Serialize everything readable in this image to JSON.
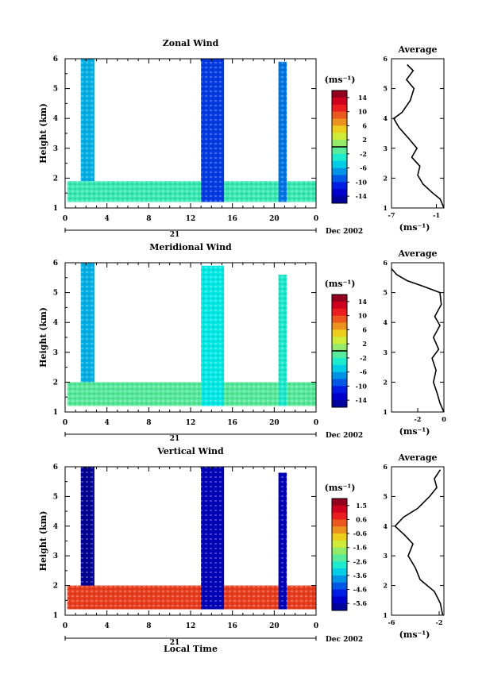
{
  "figure": {
    "xlabel_bottom": "Local Time",
    "date_day": "21",
    "date_label": "Dec 2002",
    "unit_label": "(ms⁻¹)",
    "average_title": "Average"
  },
  "chart_data": [
    {
      "type": "heatmap",
      "title": "Zonal Wind",
      "ylabel": "Height (km)",
      "xlabel": "Local Time",
      "x_ticks": [
        "0",
        "4",
        "8",
        "12",
        "16",
        "20",
        "0"
      ],
      "xlim_hours": [
        0,
        24
      ],
      "y_ticks": [
        "1",
        "2",
        "3",
        "4",
        "5",
        "6"
      ],
      "ylim_km": [
        1,
        6
      ],
      "colorbar": {
        "unit": "(ms⁻¹)",
        "ticks": [
          "14",
          "10",
          "6",
          "2",
          "-2",
          "-6",
          "-10",
          "-14"
        ],
        "range": [
          -16,
          16
        ],
        "zero_line": 0
      },
      "data_regions": [
        {
          "x_hours": [
            1.5,
            2.8
          ],
          "height_km": [
            1.2,
            6.0
          ],
          "value": -6
        },
        {
          "x_hours": [
            0.2,
            24.0
          ],
          "height_km": [
            1.2,
            1.9
          ],
          "value": -2
        },
        {
          "x_hours": [
            13.0,
            15.2
          ],
          "height_km": [
            1.2,
            6.0
          ],
          "value": -10
        },
        {
          "x_hours": [
            20.4,
            21.2
          ],
          "height_km": [
            1.2,
            5.9
          ],
          "value": -8
        }
      ],
      "average": {
        "title": "Average",
        "xlabel": "(ms⁻¹)",
        "x_ticks": [
          "-7",
          "-1"
        ],
        "xlim": [
          -7,
          0
        ],
        "profile": [
          {
            "height": 1.0,
            "value": 0.0
          },
          {
            "height": 1.3,
            "value": -0.5
          },
          {
            "height": 1.5,
            "value": -1.5
          },
          {
            "height": 1.8,
            "value": -2.8
          },
          {
            "height": 2.1,
            "value": -3.5
          },
          {
            "height": 2.4,
            "value": -3.2
          },
          {
            "height": 2.7,
            "value": -4.3
          },
          {
            "height": 3.0,
            "value": -3.6
          },
          {
            "height": 3.3,
            "value": -4.6
          },
          {
            "height": 3.7,
            "value": -6.0
          },
          {
            "height": 4.0,
            "value": -6.7
          },
          {
            "height": 4.2,
            "value": -5.6
          },
          {
            "height": 4.6,
            "value": -4.5
          },
          {
            "height": 5.0,
            "value": -4.0
          },
          {
            "height": 5.3,
            "value": -5.0
          },
          {
            "height": 5.6,
            "value": -4.1
          },
          {
            "height": 5.8,
            "value": -4.9
          }
        ]
      }
    },
    {
      "type": "heatmap",
      "title": "Meridional Wind",
      "ylabel": "Height (km)",
      "xlabel": "Local Time",
      "x_ticks": [
        "0",
        "4",
        "8",
        "12",
        "16",
        "20",
        "0"
      ],
      "xlim_hours": [
        0,
        24
      ],
      "y_ticks": [
        "1",
        "2",
        "3",
        "4",
        "5",
        "6"
      ],
      "ylim_km": [
        1,
        6
      ],
      "colorbar": {
        "unit": "(ms⁻¹)",
        "ticks": [
          "14",
          "10",
          "6",
          "2",
          "-2",
          "-6",
          "-10",
          "-14"
        ],
        "range": [
          -16,
          16
        ],
        "zero_line": 0
      },
      "data_regions": [
        {
          "x_hours": [
            1.5,
            2.8
          ],
          "height_km": [
            1.2,
            6.0
          ],
          "value": -6
        },
        {
          "x_hours": [
            0.2,
            24.0
          ],
          "height_km": [
            1.2,
            2.0
          ],
          "value": -1
        },
        {
          "x_hours": [
            13.0,
            15.2
          ],
          "height_km": [
            1.2,
            5.9
          ],
          "value": -4
        },
        {
          "x_hours": [
            20.4,
            21.2
          ],
          "height_km": [
            1.2,
            5.6
          ],
          "value": -3
        }
      ],
      "average": {
        "title": "Average",
        "xlabel": "(ms⁻¹)",
        "x_ticks": [
          "-2",
          "0"
        ],
        "xlim": [
          -4,
          0
        ],
        "profile": [
          {
            "height": 1.0,
            "value": 0.0
          },
          {
            "height": 1.3,
            "value": -0.3
          },
          {
            "height": 1.6,
            "value": -0.5
          },
          {
            "height": 2.0,
            "value": -0.8
          },
          {
            "height": 2.4,
            "value": -0.6
          },
          {
            "height": 2.8,
            "value": -0.9
          },
          {
            "height": 3.1,
            "value": -0.4
          },
          {
            "height": 3.5,
            "value": -0.8
          },
          {
            "height": 3.9,
            "value": -0.3
          },
          {
            "height": 4.2,
            "value": -0.7
          },
          {
            "height": 4.6,
            "value": -0.2
          },
          {
            "height": 5.0,
            "value": -0.3
          },
          {
            "height": 5.2,
            "value": -1.5
          },
          {
            "height": 5.4,
            "value": -2.8
          },
          {
            "height": 5.6,
            "value": -3.6
          },
          {
            "height": 5.8,
            "value": -4.0
          }
        ]
      }
    },
    {
      "type": "heatmap",
      "title": "Vertical Wind",
      "ylabel": "Height (km)",
      "xlabel": "Local Time",
      "x_ticks": [
        "0",
        "4",
        "8",
        "12",
        "16",
        "20",
        "0"
      ],
      "xlim_hours": [
        0,
        24
      ],
      "y_ticks": [
        "1",
        "2",
        "3",
        "4",
        "5",
        "6"
      ],
      "ylim_km": [
        1,
        6
      ],
      "colorbar": {
        "unit": "(ms⁻¹)",
        "ticks": [
          "1.5",
          "0.6",
          "-0.6",
          "-1.6",
          "-2.6",
          "-3.6",
          "-4.6",
          "-5.6"
        ],
        "range": [
          -6.2,
          2.2
        ],
        "zero_line": null
      },
      "data_regions": [
        {
          "x_hours": [
            1.5,
            2.8
          ],
          "height_km": [
            1.2,
            6.0
          ],
          "value": -6
        },
        {
          "x_hours": [
            0.2,
            24.0
          ],
          "height_km": [
            1.2,
            2.0
          ],
          "value": 0.6
        },
        {
          "x_hours": [
            13.0,
            15.2
          ],
          "height_km": [
            1.2,
            6.0
          ],
          "value": -5.6
        },
        {
          "x_hours": [
            20.4,
            21.2
          ],
          "height_km": [
            1.2,
            5.8
          ],
          "value": -5.6
        }
      ],
      "average": {
        "title": "Average",
        "xlabel": "(ms⁻¹)",
        "x_ticks": [
          "-6",
          "-2"
        ],
        "xlim": [
          -6,
          -1.6
        ],
        "profile": [
          {
            "height": 1.0,
            "value": -1.7
          },
          {
            "height": 1.4,
            "value": -1.9
          },
          {
            "height": 1.8,
            "value": -2.4
          },
          {
            "height": 2.2,
            "value": -3.6
          },
          {
            "height": 2.6,
            "value": -4.0
          },
          {
            "height": 3.0,
            "value": -4.6
          },
          {
            "height": 3.4,
            "value": -4.2
          },
          {
            "height": 3.7,
            "value": -4.9
          },
          {
            "height": 4.0,
            "value": -5.7
          },
          {
            "height": 4.3,
            "value": -5.0
          },
          {
            "height": 4.6,
            "value": -3.8
          },
          {
            "height": 5.0,
            "value": -2.8
          },
          {
            "height": 5.3,
            "value": -2.2
          },
          {
            "height": 5.6,
            "value": -2.4
          },
          {
            "height": 5.9,
            "value": -1.9
          }
        ]
      }
    }
  ]
}
